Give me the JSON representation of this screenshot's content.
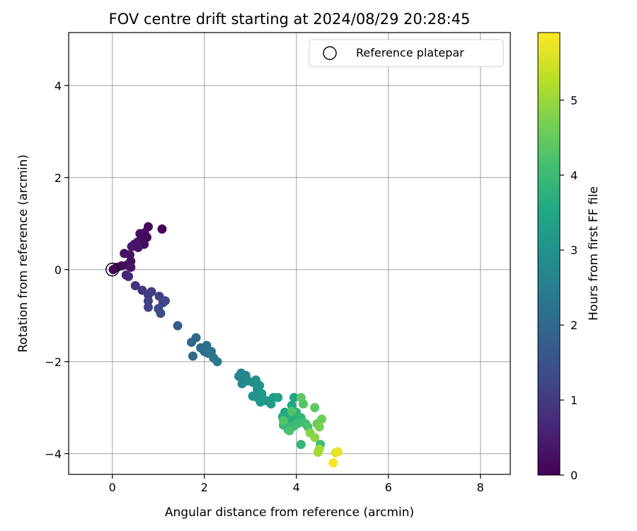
{
  "chart_data": {
    "type": "scatter",
    "title": "FOV centre drift starting at 2024/08/29 20:28:45",
    "xlabel": "Angular distance from reference (arcmin)",
    "ylabel": "Rotation from reference (arcmin)",
    "xlim": [
      -0.95,
      8.65
    ],
    "ylim": [
      -4.45,
      5.15
    ],
    "xticks": [
      0,
      2,
      4,
      6,
      8
    ],
    "yticks": [
      -4,
      -2,
      0,
      2,
      4
    ],
    "xtick_labels": [
      "0",
      "2",
      "4",
      "6",
      "8"
    ],
    "ytick_labels": [
      "−4",
      "−2",
      "0",
      "2",
      "4"
    ],
    "grid": true,
    "legend": {
      "location": "upper right",
      "entries": [
        "Reference platepar"
      ]
    },
    "colorbar": {
      "label": "Hours from first FF file",
      "colormap": "viridis",
      "range": [
        0,
        5.9
      ],
      "ticks": [
        0,
        1,
        2,
        3,
        4,
        5
      ],
      "tick_labels": [
        "0",
        "1",
        "2",
        "3",
        "4",
        "5"
      ]
    },
    "reference_point": {
      "x": 0,
      "y": 0
    },
    "series": [
      {
        "points": [
          {
            "x": 0.02,
            "y": 0.0,
            "c": 0.05
          },
          {
            "x": 0.1,
            "y": 0.05,
            "c": 0.1
          },
          {
            "x": 0.2,
            "y": 0.08,
            "c": 0.15
          },
          {
            "x": 0.32,
            "y": 0.1,
            "c": 0.2
          },
          {
            "x": 0.4,
            "y": 0.18,
            "c": 0.25
          },
          {
            "x": 0.4,
            "y": 0.05,
            "c": 0.3
          },
          {
            "x": 0.26,
            "y": 0.35,
            "c": 0.3
          },
          {
            "x": 0.38,
            "y": 0.32,
            "c": 0.32
          },
          {
            "x": 0.48,
            "y": 0.55,
            "c": 0.35
          },
          {
            "x": 0.42,
            "y": 0.5,
            "c": 0.38
          },
          {
            "x": 0.55,
            "y": 0.6,
            "c": 0.35
          },
          {
            "x": 0.6,
            "y": 0.78,
            "c": 0.3
          },
          {
            "x": 0.7,
            "y": 0.8,
            "c": 0.25
          },
          {
            "x": 0.78,
            "y": 0.93,
            "c": 0.1
          },
          {
            "x": 0.66,
            "y": 0.72,
            "c": 0.2
          },
          {
            "x": 0.75,
            "y": 0.7,
            "c": 0.15
          },
          {
            "x": 0.69,
            "y": 0.55,
            "c": 0.2
          },
          {
            "x": 0.56,
            "y": 0.48,
            "c": 0.3
          },
          {
            "x": 1.08,
            "y": 0.88,
            "c": 0.05
          },
          {
            "x": 0.3,
            "y": -0.12,
            "c": 0.6
          },
          {
            "x": 0.35,
            "y": -0.15,
            "c": 0.65
          },
          {
            "x": 0.5,
            "y": -0.35,
            "c": 0.8
          },
          {
            "x": 0.65,
            "y": -0.45,
            "c": 0.9
          },
          {
            "x": 0.78,
            "y": -0.55,
            "c": 1.0
          },
          {
            "x": 0.85,
            "y": -0.48,
            "c": 1.05
          },
          {
            "x": 1.02,
            "y": -0.58,
            "c": 1.1
          },
          {
            "x": 1.1,
            "y": -0.72,
            "c": 1.15
          },
          {
            "x": 0.78,
            "y": -0.68,
            "c": 1.1
          },
          {
            "x": 0.78,
            "y": -0.82,
            "c": 1.2
          },
          {
            "x": 1.0,
            "y": -0.85,
            "c": 1.3
          },
          {
            "x": 1.05,
            "y": -0.95,
            "c": 1.35
          },
          {
            "x": 1.15,
            "y": -0.68,
            "c": 1.25
          },
          {
            "x": 1.42,
            "y": -1.22,
            "c": 1.6
          },
          {
            "x": 1.72,
            "y": -1.58,
            "c": 1.9
          },
          {
            "x": 1.82,
            "y": -1.48,
            "c": 2.0
          },
          {
            "x": 1.75,
            "y": -1.88,
            "c": 2.0
          },
          {
            "x": 1.92,
            "y": -1.7,
            "c": 2.05
          },
          {
            "x": 2.0,
            "y": -1.78,
            "c": 2.1
          },
          {
            "x": 2.05,
            "y": -1.65,
            "c": 2.15
          },
          {
            "x": 2.08,
            "y": -1.82,
            "c": 2.2
          },
          {
            "x": 2.15,
            "y": -1.78,
            "c": 2.25
          },
          {
            "x": 2.2,
            "y": -1.92,
            "c": 2.3
          },
          {
            "x": 2.28,
            "y": -2.0,
            "c": 2.4
          },
          {
            "x": 2.75,
            "y": -2.32,
            "c": 2.6
          },
          {
            "x": 2.8,
            "y": -2.25,
            "c": 2.65
          },
          {
            "x": 2.82,
            "y": -2.48,
            "c": 2.7
          },
          {
            "x": 2.9,
            "y": -2.3,
            "c": 2.75
          },
          {
            "x": 2.95,
            "y": -2.42,
            "c": 2.8
          },
          {
            "x": 3.05,
            "y": -2.45,
            "c": 2.85
          },
          {
            "x": 3.12,
            "y": -2.4,
            "c": 2.9
          },
          {
            "x": 3.15,
            "y": -2.6,
            "c": 2.95
          },
          {
            "x": 3.2,
            "y": -2.52,
            "c": 3.0
          },
          {
            "x": 3.05,
            "y": -2.75,
            "c": 3.0
          },
          {
            "x": 3.15,
            "y": -2.78,
            "c": 3.05
          },
          {
            "x": 3.25,
            "y": -2.7,
            "c": 3.1
          },
          {
            "x": 3.22,
            "y": -2.88,
            "c": 3.1
          },
          {
            "x": 3.35,
            "y": -2.85,
            "c": 3.15
          },
          {
            "x": 3.45,
            "y": -2.92,
            "c": 3.2
          },
          {
            "x": 3.5,
            "y": -2.78,
            "c": 3.25
          },
          {
            "x": 3.6,
            "y": -2.78,
            "c": 3.3
          },
          {
            "x": 3.75,
            "y": -3.1,
            "c": 3.5
          },
          {
            "x": 3.8,
            "y": -3.18,
            "c": 3.6
          },
          {
            "x": 3.9,
            "y": -2.95,
            "c": 3.5
          },
          {
            "x": 3.95,
            "y": -2.78,
            "c": 3.45
          },
          {
            "x": 3.7,
            "y": -3.2,
            "c": 3.6
          },
          {
            "x": 3.85,
            "y": -3.3,
            "c": 3.7
          },
          {
            "x": 3.92,
            "y": -3.2,
            "c": 3.75
          },
          {
            "x": 4.0,
            "y": -3.1,
            "c": 3.8
          },
          {
            "x": 4.05,
            "y": -3.28,
            "c": 3.8
          },
          {
            "x": 4.1,
            "y": -3.22,
            "c": 3.85
          },
          {
            "x": 3.72,
            "y": -3.38,
            "c": 3.9
          },
          {
            "x": 3.82,
            "y": -3.48,
            "c": 3.95
          },
          {
            "x": 3.88,
            "y": -3.42,
            "c": 3.9
          },
          {
            "x": 3.95,
            "y": -3.4,
            "c": 3.95
          },
          {
            "x": 4.02,
            "y": -3.35,
            "c": 4.0
          },
          {
            "x": 4.15,
            "y": -3.32,
            "c": 4.05
          },
          {
            "x": 4.2,
            "y": -3.35,
            "c": 4.1
          },
          {
            "x": 4.25,
            "y": -3.42,
            "c": 4.2
          },
          {
            "x": 3.85,
            "y": -3.5,
            "c": 4.2
          },
          {
            "x": 3.72,
            "y": -3.28,
            "c": 4.3
          },
          {
            "x": 3.9,
            "y": -3.08,
            "c": 4.25
          },
          {
            "x": 4.15,
            "y": -2.92,
            "c": 4.3
          },
          {
            "x": 4.1,
            "y": -2.78,
            "c": 4.4
          },
          {
            "x": 4.4,
            "y": -3.0,
            "c": 4.4
          },
          {
            "x": 4.45,
            "y": -3.35,
            "c": 4.5
          },
          {
            "x": 4.55,
            "y": -3.25,
            "c": 4.6
          },
          {
            "x": 4.5,
            "y": -3.42,
            "c": 4.7
          },
          {
            "x": 4.3,
            "y": -3.55,
            "c": 4.8
          },
          {
            "x": 4.4,
            "y": -3.65,
            "c": 4.9
          },
          {
            "x": 4.52,
            "y": -3.8,
            "c": 4.0
          },
          {
            "x": 4.1,
            "y": -3.8,
            "c": 3.9
          },
          {
            "x": 4.5,
            "y": -3.9,
            "c": 5.0
          },
          {
            "x": 4.47,
            "y": -3.97,
            "c": 5.1
          },
          {
            "x": 4.85,
            "y": -3.98,
            "c": 5.6
          },
          {
            "x": 4.9,
            "y": -3.96,
            "c": 5.7
          },
          {
            "x": 4.8,
            "y": -4.2,
            "c": 5.85
          }
        ]
      }
    ]
  }
}
